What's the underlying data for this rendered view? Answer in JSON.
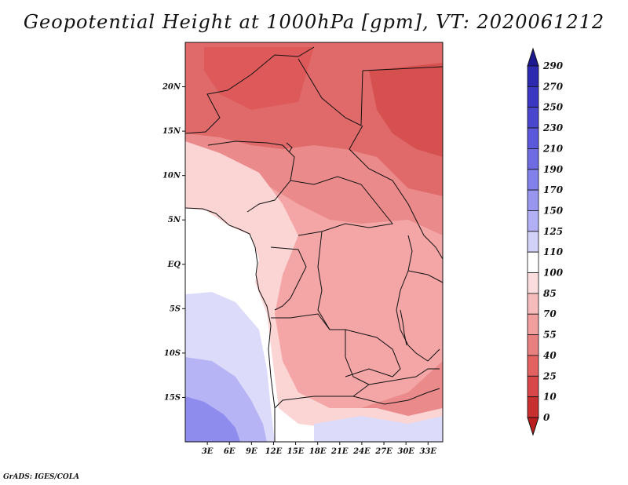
{
  "title": "Geopotential Height at 1000hPa [gpm], VT: 2020061212",
  "credit": "GrADS: IGES/COLA",
  "map": {
    "lat_labels": [
      "20N",
      "15N",
      "10N",
      "5N",
      "EQ",
      "5S",
      "10S",
      "15S"
    ],
    "lat_values": [
      20,
      15,
      10,
      5,
      0,
      -5,
      -10,
      -15
    ],
    "lon_labels": [
      "3E",
      "6E",
      "9E",
      "12E",
      "15E",
      "18E",
      "21E",
      "24E",
      "27E",
      "30E",
      "33E"
    ],
    "lon_values": [
      3,
      6,
      9,
      12,
      15,
      18,
      21,
      24,
      27,
      30,
      33
    ],
    "lon_range": [
      0,
      35
    ],
    "lat_range": [
      -20,
      25
    ]
  },
  "colorbar": {
    "labels": [
      "290",
      "270",
      "250",
      "230",
      "210",
      "190",
      "170",
      "150",
      "125",
      "110",
      "100",
      "85",
      "70",
      "55",
      "40",
      "25",
      "10",
      "0"
    ],
    "colors": [
      "#1c1990",
      "#2d2ab0",
      "#3a37c2",
      "#4a47cf",
      "#5b58db",
      "#6e6be3",
      "#8280ea",
      "#9896ef",
      "#b2b0f4",
      "#d2d2f8",
      "#ffffff",
      "#fbdddd",
      "#f6bcbc",
      "#f09e9e",
      "#e88080",
      "#e26262",
      "#d84848",
      "#c83030",
      "#b81c1c"
    ]
  },
  "fields": {
    "regions": [
      {
        "name": "white-ocean",
        "color": "#ffffff"
      },
      {
        "name": "light-blue",
        "color": "#dcdcfa"
      },
      {
        "name": "mid-blue",
        "color": "#b6b4f4"
      },
      {
        "name": "deep-blue",
        "color": "#8e8cec"
      },
      {
        "name": "light-pink",
        "color": "#fbd8d8"
      },
      {
        "name": "pink",
        "color": "#f4a6a6"
      },
      {
        "name": "salmon",
        "color": "#ea8a8a"
      },
      {
        "name": "red",
        "color": "#e06666"
      },
      {
        "name": "deep-red",
        "color": "#d65050"
      }
    ]
  }
}
